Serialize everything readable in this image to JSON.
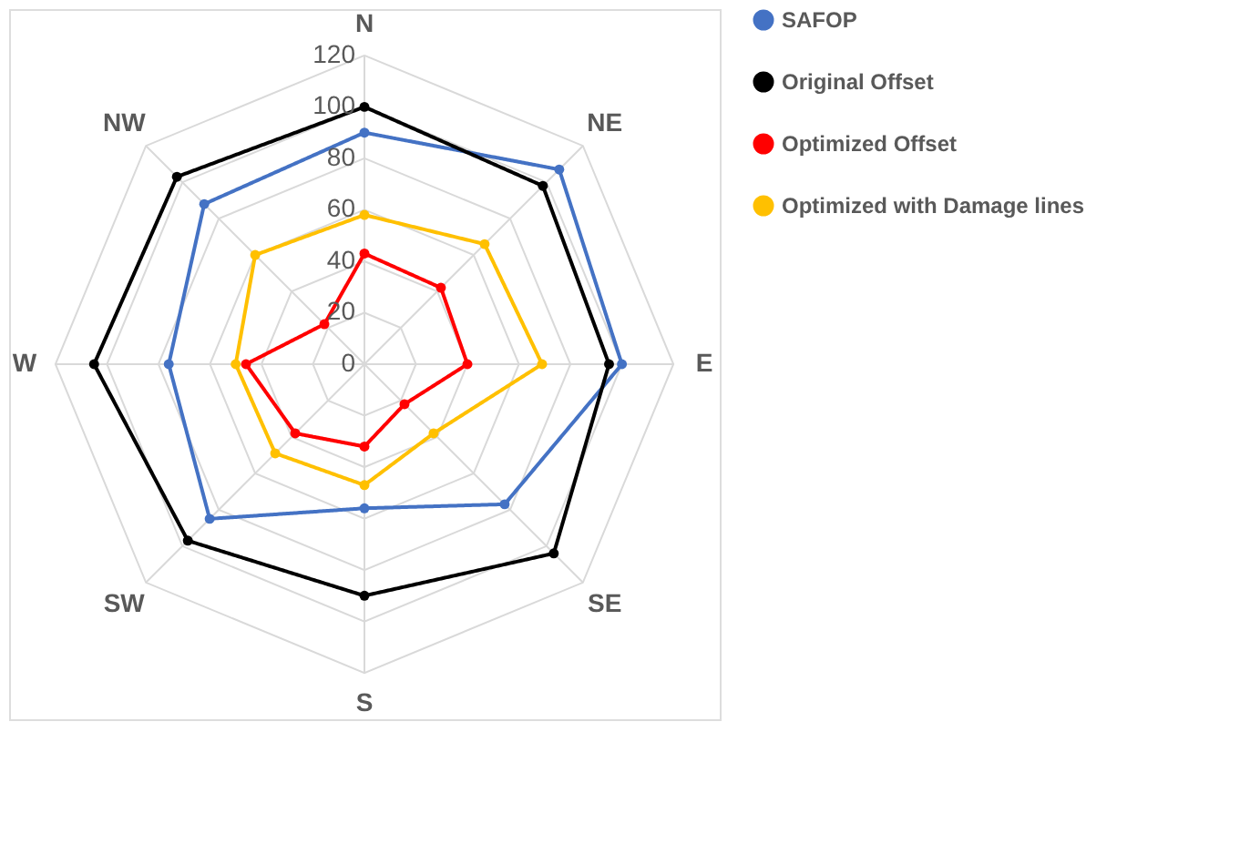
{
  "chart_data": {
    "type": "radar",
    "categories": [
      "N",
      "NE",
      "E",
      "SE",
      "S",
      "SW",
      "W",
      "NW"
    ],
    "series": [
      {
        "name": "SAFOP",
        "color": "#4472c4",
        "values": [
          90,
          107,
          100,
          77,
          56,
          85,
          76,
          88
        ]
      },
      {
        "name": "Original Offset",
        "color": "#000000",
        "values": [
          100,
          98,
          95,
          104,
          90,
          97,
          105,
          103
        ]
      },
      {
        "name": "Optimized Offset",
        "color": "#ff0000",
        "values": [
          43,
          42,
          40,
          22,
          32,
          38,
          46,
          22
        ]
      },
      {
        "name": "Optimized with Damage lines",
        "color": "#ffc000",
        "values": [
          58,
          66,
          69,
          38,
          47,
          49,
          50,
          60
        ]
      }
    ],
    "ylim": [
      0,
      120
    ],
    "yticks": [
      0,
      20,
      40,
      60,
      80,
      100,
      120
    ],
    "grid": true,
    "legend": "right",
    "marker": "circle",
    "line_style": "solid"
  }
}
